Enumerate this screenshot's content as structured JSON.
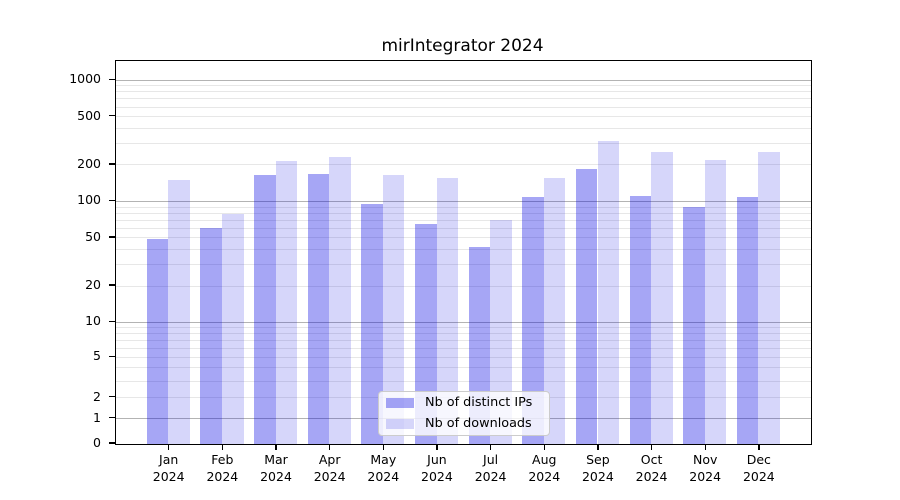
{
  "chart_data": {
    "type": "bar",
    "title": "mirIntegrator 2024",
    "categories": [
      "Jan",
      "Feb",
      "Mar",
      "Apr",
      "May",
      "Jun",
      "Jul",
      "Aug",
      "Sep",
      "Oct",
      "Nov",
      "Dec"
    ],
    "year_label": "2024",
    "series": [
      {
        "name": "Nb of distinct IPs",
        "color": "#0000e1",
        "alpha": 0.35,
        "values": [
          49,
          60,
          164,
          167,
          96,
          65,
          42,
          108,
          187,
          110,
          90,
          108
        ]
      },
      {
        "name": "Nb of downloads",
        "color": "#0000e1",
        "alpha": 0.16,
        "values": [
          150,
          79,
          215,
          234,
          166,
          157,
          70,
          155,
          315,
          255,
          220,
          255
        ]
      }
    ],
    "yscale": "asinh",
    "ylim": [
      0,
      1440
    ],
    "yticks": [
      0,
      1,
      2,
      5,
      10,
      20,
      50,
      100,
      200,
      500,
      1000
    ],
    "major_gridlines": [
      1,
      10,
      100,
      1000
    ],
    "minor_gridlines": [
      2,
      3,
      4,
      5,
      6,
      7,
      8,
      9,
      20,
      30,
      40,
      50,
      60,
      70,
      80,
      90,
      200,
      300,
      400,
      500,
      600,
      700,
      800,
      900
    ],
    "grid": "on",
    "legend_position": "lower center",
    "colors": {
      "major_grid": "#b3b3b3",
      "minor_grid": "#e7e7e7",
      "spine": "#000000",
      "background": "#ffffff"
    }
  }
}
